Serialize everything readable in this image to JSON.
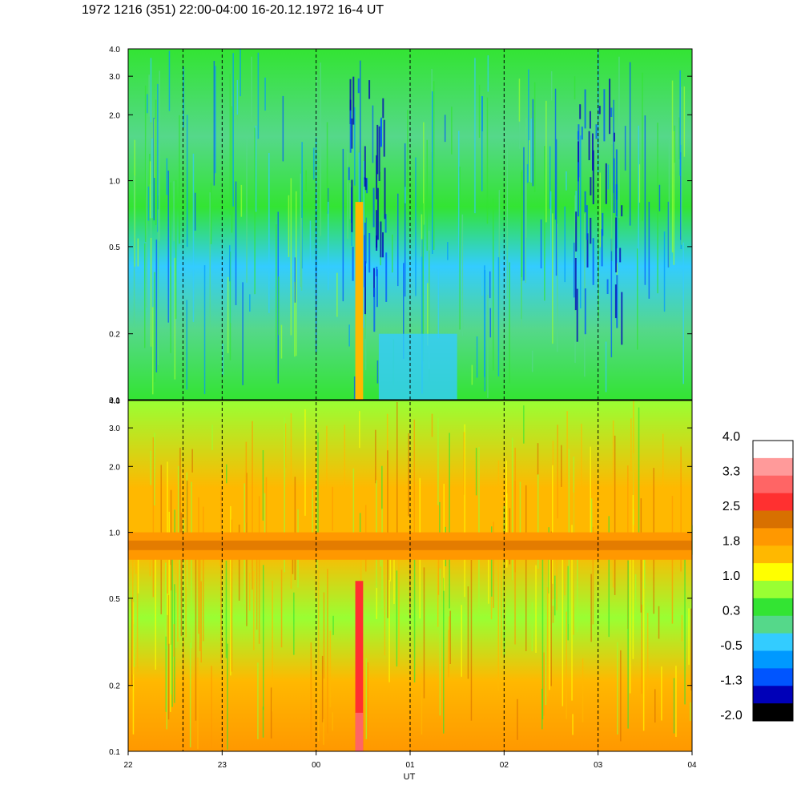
{
  "title": "1972 1216 (351) 22:00-04:00 16-20.12.1972  16-4 UT",
  "colors": {
    "frame": "#000000",
    "background": "#ffffff"
  },
  "chart_data": {
    "type": "heatmap",
    "title": "1972 1216 (351) 22:00-04:00 16-20.12.1972  16-4 UT",
    "xlabel": "UT",
    "x_tick_labels": [
      "22",
      "23",
      "00",
      "01",
      "02",
      "03",
      "04"
    ],
    "x_range_hours": [
      0,
      6
    ],
    "y_scale": "log",
    "panels": [
      {
        "name": "upper",
        "ylim": [
          0.1,
          4.0
        ],
        "y_tick_labels": [
          "0.1",
          "0.2",
          "0.5",
          "1.0",
          "2.0",
          "3.0",
          "4.0"
        ],
        "y_tick_values": [
          0.1,
          0.2,
          0.5,
          1.0,
          2.0,
          3.0,
          4.0
        ],
        "dominant_levels": [
          "green",
          "cyan",
          "blue"
        ],
        "features": [
          {
            "kind": "narrow band",
            "start": "00:25",
            "end": "00:30",
            "ymax": 0.8,
            "level": 1.8
          },
          {
            "kind": "depleted patches",
            "hours": [
              "00:20-00:45",
              "02:45-03:15"
            ],
            "level": -1.3
          }
        ]
      },
      {
        "name": "lower",
        "ylim": [
          0.1,
          4.0
        ],
        "y_tick_labels": [
          "0.1",
          "0.2",
          "0.5",
          "1.0",
          "2.0",
          "3.0",
          "4.0"
        ],
        "y_tick_values": [
          0.1,
          0.2,
          0.5,
          1.0,
          2.0,
          3.0,
          4.0
        ],
        "dominant_levels": [
          "orange",
          "yellow",
          "green"
        ],
        "features": [
          {
            "kind": "horizontal band",
            "ymin": 0.75,
            "ymax": 1.0,
            "level": 2.2
          },
          {
            "kind": "narrow band",
            "start": "00:25",
            "end": "00:30",
            "ymax": 0.6,
            "level": 2.9
          }
        ]
      }
    ],
    "vertical_dashed_lines_at": [
      "22:35",
      "23:00",
      "00:00",
      "01:00",
      "02:00",
      "03:00"
    ],
    "colorbar": {
      "labels": [
        "4.0",
        "3.3",
        "2.5",
        "1.8",
        "1.0",
        "0.3",
        "-0.5",
        "-1.3",
        "-2.0"
      ],
      "colors": [
        "#ffffff",
        "#ff9a9a",
        "#ff6565",
        "#ff3030",
        "#d87000",
        "#ff9800",
        "#ffb800",
        "#ffff00",
        "#99ff33",
        "#33e433",
        "#55d88a",
        "#33ccff",
        "#0099ff",
        "#0055ff",
        "#0000b8",
        "#000000"
      ]
    }
  }
}
